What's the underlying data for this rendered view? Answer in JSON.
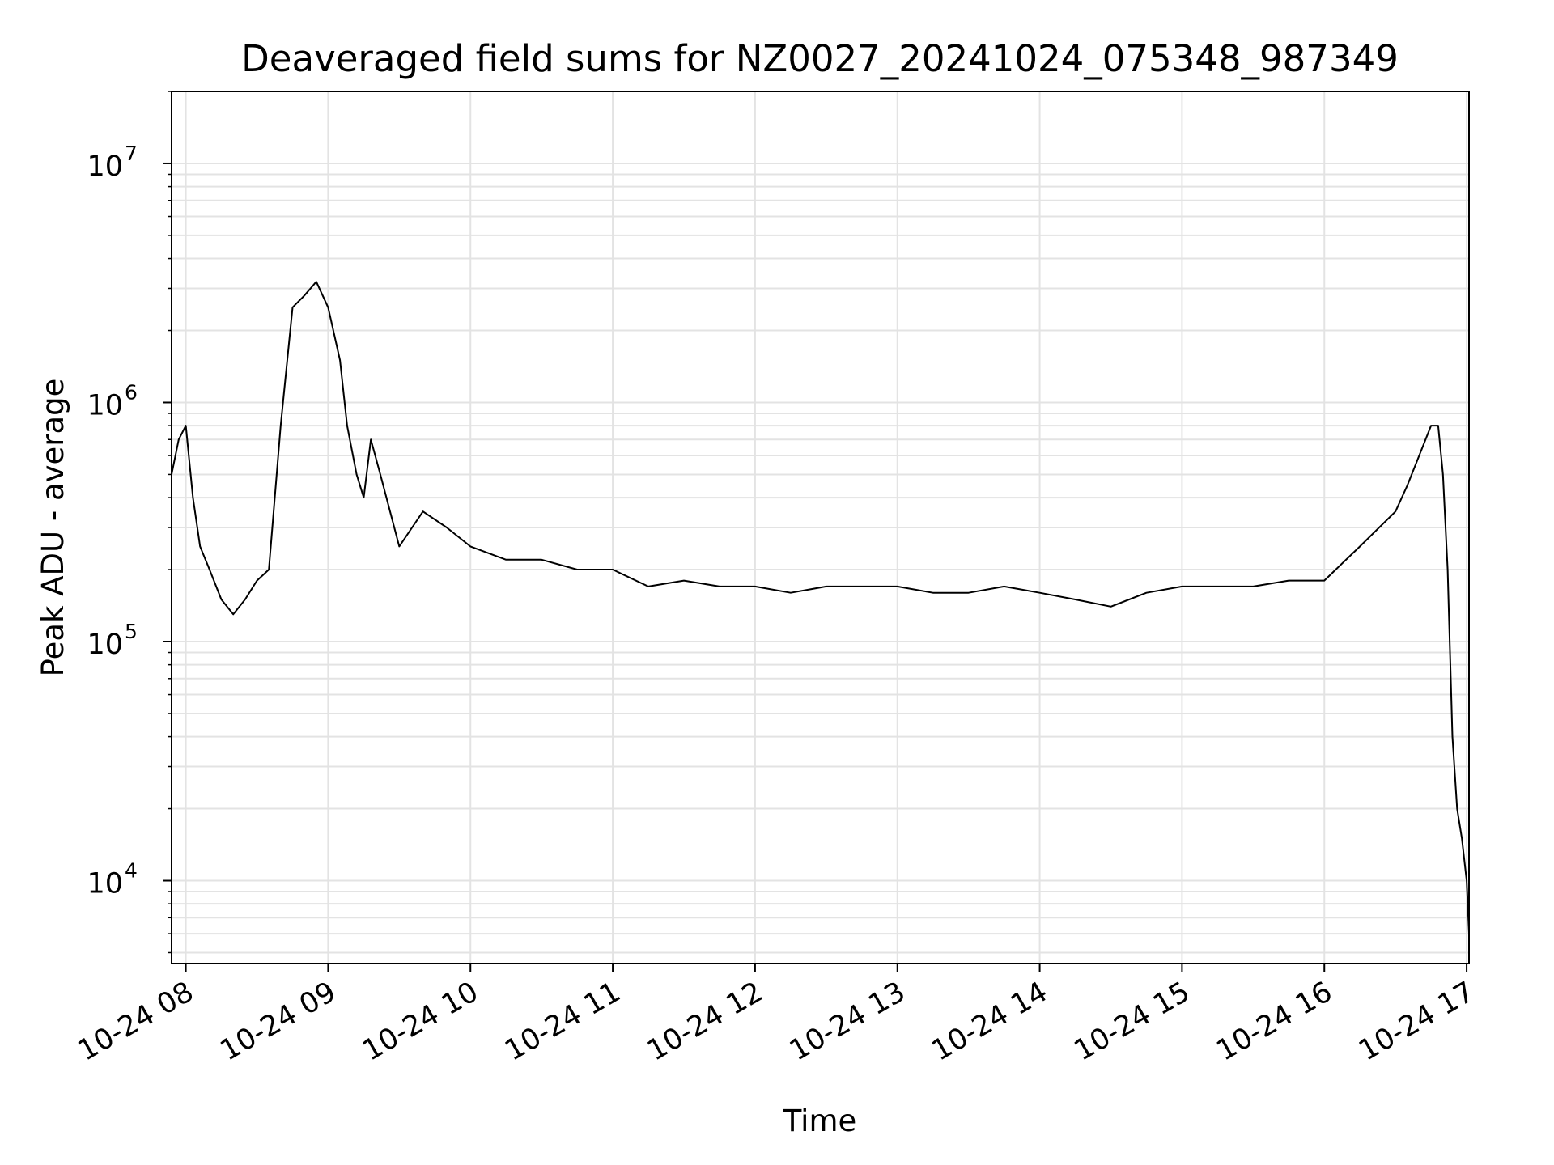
{
  "chart_data": {
    "type": "line",
    "title": "Deaveraged field sums for NZ0027_20241024_075348_987349",
    "xlabel": "Time",
    "ylabel": "Peak ADU - average",
    "y_scale": "log",
    "grid": true,
    "line_color": "#000000",
    "grid_color": "#e3e3e3",
    "xlim": [
      "2024-10-24 07:54",
      "2024-10-24 17:01"
    ],
    "ylim": [
      4500,
      20000000
    ],
    "x_ticks": [
      {
        "value": "2024-10-24 08:00",
        "label": "10-24 08"
      },
      {
        "value": "2024-10-24 09:00",
        "label": "10-24 09"
      },
      {
        "value": "2024-10-24 10:00",
        "label": "10-24 10"
      },
      {
        "value": "2024-10-24 11:00",
        "label": "10-24 11"
      },
      {
        "value": "2024-10-24 12:00",
        "label": "10-24 12"
      },
      {
        "value": "2024-10-24 13:00",
        "label": "10-24 13"
      },
      {
        "value": "2024-10-24 14:00",
        "label": "10-24 14"
      },
      {
        "value": "2024-10-24 15:00",
        "label": "10-24 15"
      },
      {
        "value": "2024-10-24 16:00",
        "label": "10-24 16"
      },
      {
        "value": "2024-10-24 17:00",
        "label": "10-24 17"
      }
    ],
    "y_ticks": [
      {
        "value": 10000,
        "base": "10",
        "exp": "4"
      },
      {
        "value": 100000,
        "base": "10",
        "exp": "5"
      },
      {
        "value": 1000000,
        "base": "10",
        "exp": "6"
      },
      {
        "value": 10000000,
        "base": "10",
        "exp": "7"
      }
    ],
    "series": [
      {
        "x": [
          "2024-10-24 07:54",
          "2024-10-24 07:57",
          "2024-10-24 08:00",
          "2024-10-24 08:03",
          "2024-10-24 08:06",
          "2024-10-24 08:10",
          "2024-10-24 08:15",
          "2024-10-24 08:20",
          "2024-10-24 08:25",
          "2024-10-24 08:30",
          "2024-10-24 08:35",
          "2024-10-24 08:40",
          "2024-10-24 08:45",
          "2024-10-24 08:50",
          "2024-10-24 08:55",
          "2024-10-24 09:00",
          "2024-10-24 09:05",
          "2024-10-24 09:08",
          "2024-10-24 09:12",
          "2024-10-24 09:15",
          "2024-10-24 09:18",
          "2024-10-24 09:22",
          "2024-10-24 09:30",
          "2024-10-24 09:40",
          "2024-10-24 09:50",
          "2024-10-24 10:00",
          "2024-10-24 10:15",
          "2024-10-24 10:30",
          "2024-10-24 10:45",
          "2024-10-24 11:00",
          "2024-10-24 11:15",
          "2024-10-24 11:30",
          "2024-10-24 11:45",
          "2024-10-24 12:00",
          "2024-10-24 12:15",
          "2024-10-24 12:30",
          "2024-10-24 12:45",
          "2024-10-24 13:00",
          "2024-10-24 13:15",
          "2024-10-24 13:30",
          "2024-10-24 13:45",
          "2024-10-24 14:00",
          "2024-10-24 14:15",
          "2024-10-24 14:30",
          "2024-10-24 14:45",
          "2024-10-24 15:00",
          "2024-10-24 15:15",
          "2024-10-24 15:30",
          "2024-10-24 15:45",
          "2024-10-24 16:00",
          "2024-10-24 16:15",
          "2024-10-24 16:30",
          "2024-10-24 16:35",
          "2024-10-24 16:40",
          "2024-10-24 16:45",
          "2024-10-24 16:48",
          "2024-10-24 16:50",
          "2024-10-24 16:52",
          "2024-10-24 16:54",
          "2024-10-24 16:56",
          "2024-10-24 16:58",
          "2024-10-24 17:00",
          "2024-10-24 17:01"
        ],
        "y": [
          500000,
          700000,
          800000,
          400000,
          250000,
          200000,
          150000,
          130000,
          150000,
          180000,
          200000,
          800000,
          2500000,
          2800000,
          3200000,
          2500000,
          1500000,
          800000,
          500000,
          400000,
          700000,
          500000,
          250000,
          350000,
          300000,
          250000,
          220000,
          220000,
          200000,
          200000,
          170000,
          180000,
          170000,
          170000,
          160000,
          170000,
          170000,
          170000,
          160000,
          160000,
          170000,
          160000,
          150000,
          140000,
          160000,
          170000,
          170000,
          170000,
          180000,
          180000,
          250000,
          350000,
          450000,
          600000,
          800000,
          800000,
          500000,
          200000,
          40000,
          20000,
          15000,
          10000,
          6000
        ]
      }
    ]
  }
}
